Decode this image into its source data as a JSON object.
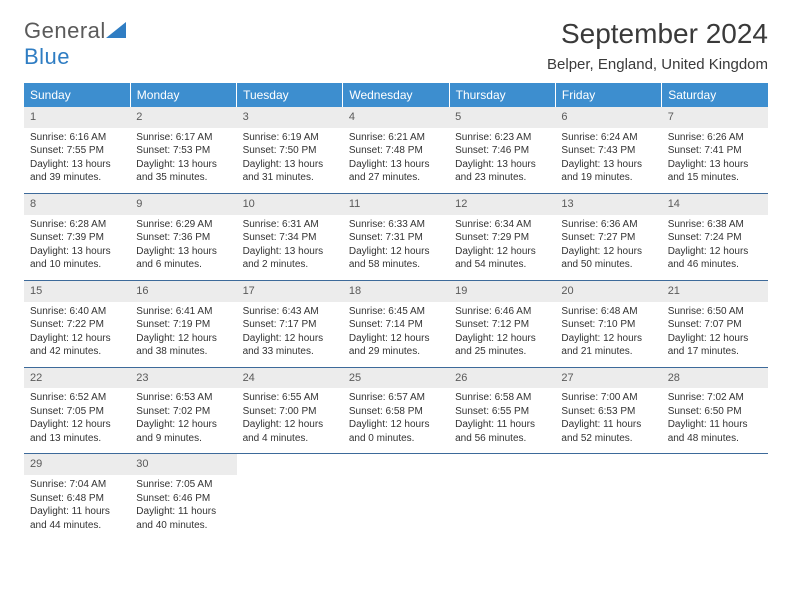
{
  "brand": {
    "line1": "General",
    "line2": "Blue"
  },
  "header": {
    "month": "September 2024",
    "location": "Belper, England, United Kingdom"
  },
  "colors": {
    "header_bg": "#3d8ecf",
    "header_text": "#ffffff",
    "daynum_bg": "#ececec",
    "daynum_text": "#5a5a5a",
    "row_border": "#3d6a9a",
    "body_text": "#333333",
    "brand_gray": "#5a5a5a",
    "brand_blue": "#2f7dc3"
  },
  "typography": {
    "month_fontsize": 28,
    "location_fontsize": 15,
    "weekday_fontsize": 12,
    "daynum_fontsize": 11,
    "cell_fontsize": 10
  },
  "weekdays": [
    "Sunday",
    "Monday",
    "Tuesday",
    "Wednesday",
    "Thursday",
    "Friday",
    "Saturday"
  ],
  "weeks": [
    [
      {
        "n": "1",
        "sr": "Sunrise: 6:16 AM",
        "ss": "Sunset: 7:55 PM",
        "dl": "Daylight: 13 hours and 39 minutes."
      },
      {
        "n": "2",
        "sr": "Sunrise: 6:17 AM",
        "ss": "Sunset: 7:53 PM",
        "dl": "Daylight: 13 hours and 35 minutes."
      },
      {
        "n": "3",
        "sr": "Sunrise: 6:19 AM",
        "ss": "Sunset: 7:50 PM",
        "dl": "Daylight: 13 hours and 31 minutes."
      },
      {
        "n": "4",
        "sr": "Sunrise: 6:21 AM",
        "ss": "Sunset: 7:48 PM",
        "dl": "Daylight: 13 hours and 27 minutes."
      },
      {
        "n": "5",
        "sr": "Sunrise: 6:23 AM",
        "ss": "Sunset: 7:46 PM",
        "dl": "Daylight: 13 hours and 23 minutes."
      },
      {
        "n": "6",
        "sr": "Sunrise: 6:24 AM",
        "ss": "Sunset: 7:43 PM",
        "dl": "Daylight: 13 hours and 19 minutes."
      },
      {
        "n": "7",
        "sr": "Sunrise: 6:26 AM",
        "ss": "Sunset: 7:41 PM",
        "dl": "Daylight: 13 hours and 15 minutes."
      }
    ],
    [
      {
        "n": "8",
        "sr": "Sunrise: 6:28 AM",
        "ss": "Sunset: 7:39 PM",
        "dl": "Daylight: 13 hours and 10 minutes."
      },
      {
        "n": "9",
        "sr": "Sunrise: 6:29 AM",
        "ss": "Sunset: 7:36 PM",
        "dl": "Daylight: 13 hours and 6 minutes."
      },
      {
        "n": "10",
        "sr": "Sunrise: 6:31 AM",
        "ss": "Sunset: 7:34 PM",
        "dl": "Daylight: 13 hours and 2 minutes."
      },
      {
        "n": "11",
        "sr": "Sunrise: 6:33 AM",
        "ss": "Sunset: 7:31 PM",
        "dl": "Daylight: 12 hours and 58 minutes."
      },
      {
        "n": "12",
        "sr": "Sunrise: 6:34 AM",
        "ss": "Sunset: 7:29 PM",
        "dl": "Daylight: 12 hours and 54 minutes."
      },
      {
        "n": "13",
        "sr": "Sunrise: 6:36 AM",
        "ss": "Sunset: 7:27 PM",
        "dl": "Daylight: 12 hours and 50 minutes."
      },
      {
        "n": "14",
        "sr": "Sunrise: 6:38 AM",
        "ss": "Sunset: 7:24 PM",
        "dl": "Daylight: 12 hours and 46 minutes."
      }
    ],
    [
      {
        "n": "15",
        "sr": "Sunrise: 6:40 AM",
        "ss": "Sunset: 7:22 PM",
        "dl": "Daylight: 12 hours and 42 minutes."
      },
      {
        "n": "16",
        "sr": "Sunrise: 6:41 AM",
        "ss": "Sunset: 7:19 PM",
        "dl": "Daylight: 12 hours and 38 minutes."
      },
      {
        "n": "17",
        "sr": "Sunrise: 6:43 AM",
        "ss": "Sunset: 7:17 PM",
        "dl": "Daylight: 12 hours and 33 minutes."
      },
      {
        "n": "18",
        "sr": "Sunrise: 6:45 AM",
        "ss": "Sunset: 7:14 PM",
        "dl": "Daylight: 12 hours and 29 minutes."
      },
      {
        "n": "19",
        "sr": "Sunrise: 6:46 AM",
        "ss": "Sunset: 7:12 PM",
        "dl": "Daylight: 12 hours and 25 minutes."
      },
      {
        "n": "20",
        "sr": "Sunrise: 6:48 AM",
        "ss": "Sunset: 7:10 PM",
        "dl": "Daylight: 12 hours and 21 minutes."
      },
      {
        "n": "21",
        "sr": "Sunrise: 6:50 AM",
        "ss": "Sunset: 7:07 PM",
        "dl": "Daylight: 12 hours and 17 minutes."
      }
    ],
    [
      {
        "n": "22",
        "sr": "Sunrise: 6:52 AM",
        "ss": "Sunset: 7:05 PM",
        "dl": "Daylight: 12 hours and 13 minutes."
      },
      {
        "n": "23",
        "sr": "Sunrise: 6:53 AM",
        "ss": "Sunset: 7:02 PM",
        "dl": "Daylight: 12 hours and 9 minutes."
      },
      {
        "n": "24",
        "sr": "Sunrise: 6:55 AM",
        "ss": "Sunset: 7:00 PM",
        "dl": "Daylight: 12 hours and 4 minutes."
      },
      {
        "n": "25",
        "sr": "Sunrise: 6:57 AM",
        "ss": "Sunset: 6:58 PM",
        "dl": "Daylight: 12 hours and 0 minutes."
      },
      {
        "n": "26",
        "sr": "Sunrise: 6:58 AM",
        "ss": "Sunset: 6:55 PM",
        "dl": "Daylight: 11 hours and 56 minutes."
      },
      {
        "n": "27",
        "sr": "Sunrise: 7:00 AM",
        "ss": "Sunset: 6:53 PM",
        "dl": "Daylight: 11 hours and 52 minutes."
      },
      {
        "n": "28",
        "sr": "Sunrise: 7:02 AM",
        "ss": "Sunset: 6:50 PM",
        "dl": "Daylight: 11 hours and 48 minutes."
      }
    ],
    [
      {
        "n": "29",
        "sr": "Sunrise: 7:04 AM",
        "ss": "Sunset: 6:48 PM",
        "dl": "Daylight: 11 hours and 44 minutes."
      },
      {
        "n": "30",
        "sr": "Sunrise: 7:05 AM",
        "ss": "Sunset: 6:46 PM",
        "dl": "Daylight: 11 hours and 40 minutes."
      },
      null,
      null,
      null,
      null,
      null
    ]
  ]
}
